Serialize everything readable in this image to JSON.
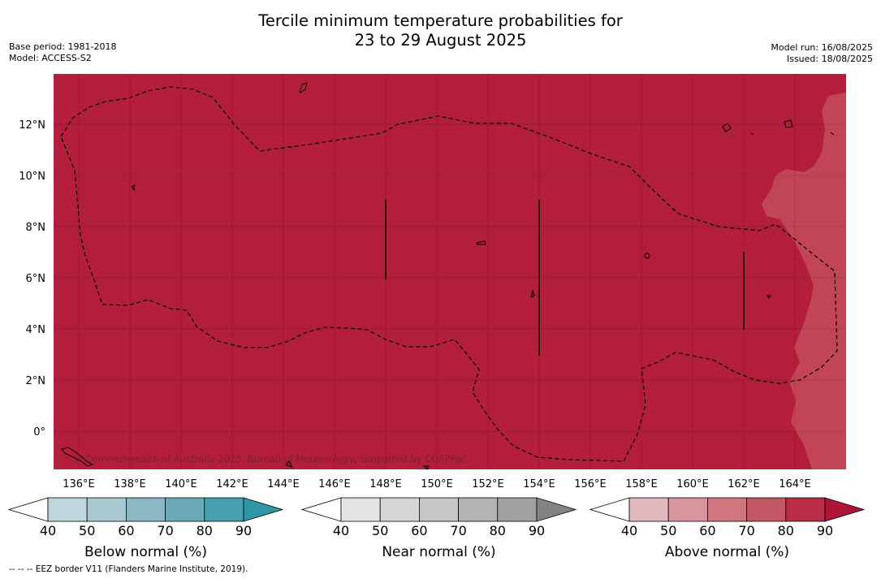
{
  "header": {
    "title_line1": "Tercile minimum temperature probabilities for",
    "title_line2": "23 to 29 August 2025",
    "base_period": "Base period: 1981-2018",
    "model": "Model: ACCESS-S2",
    "model_run": "Model run: 16/08/2025",
    "issued": "Issued: 18/08/2025"
  },
  "map": {
    "lat_ticks": [
      "12°N",
      "10°N",
      "8°N",
      "6°N",
      "4°N",
      "2°N",
      "0°"
    ],
    "lon_ticks": [
      "136°E",
      "138°E",
      "140°E",
      "142°E",
      "144°E",
      "146°E",
      "148°E",
      "150°E",
      "152°E",
      "154°E",
      "156°E",
      "158°E",
      "160°E",
      "162°E",
      "164°E"
    ],
    "copyright": "© Commonwealth of Australia 2025, Bureau of Meteorology, supported by COSPPac",
    "fill_color": "#b21e3b",
    "east_shade_color": "#c24556"
  },
  "colorbars": [
    {
      "name": "below",
      "title": "Below normal (%)",
      "labels": [
        "40",
        "50",
        "60",
        "70",
        "80",
        "90"
      ],
      "colors": [
        "#ffffff",
        "#bfd6dc",
        "#a8c9d0",
        "#8bb8c2",
        "#6aa9b6",
        "#47a0b0",
        "#2f96a8"
      ]
    },
    {
      "name": "near",
      "title": "Near normal (%)",
      "labels": [
        "40",
        "50",
        "60",
        "70",
        "80",
        "90"
      ],
      "colors": [
        "#ffffff",
        "#e4e4e4",
        "#d6d6d6",
        "#c6c6c6",
        "#b3b3b3",
        "#a0a0a0",
        "#838383"
      ]
    },
    {
      "name": "above",
      "title": "Above normal (%)",
      "labels": [
        "40",
        "50",
        "60",
        "70",
        "80",
        "90"
      ],
      "colors": [
        "#ffffff",
        "#e0b8be",
        "#d8959d",
        "#cf7680",
        "#c45766",
        "#ba2e47",
        "#b01538"
      ]
    }
  ],
  "footnote": "--  --  -- EEZ border V11 (Flanders Marine Institute, 2019)."
}
